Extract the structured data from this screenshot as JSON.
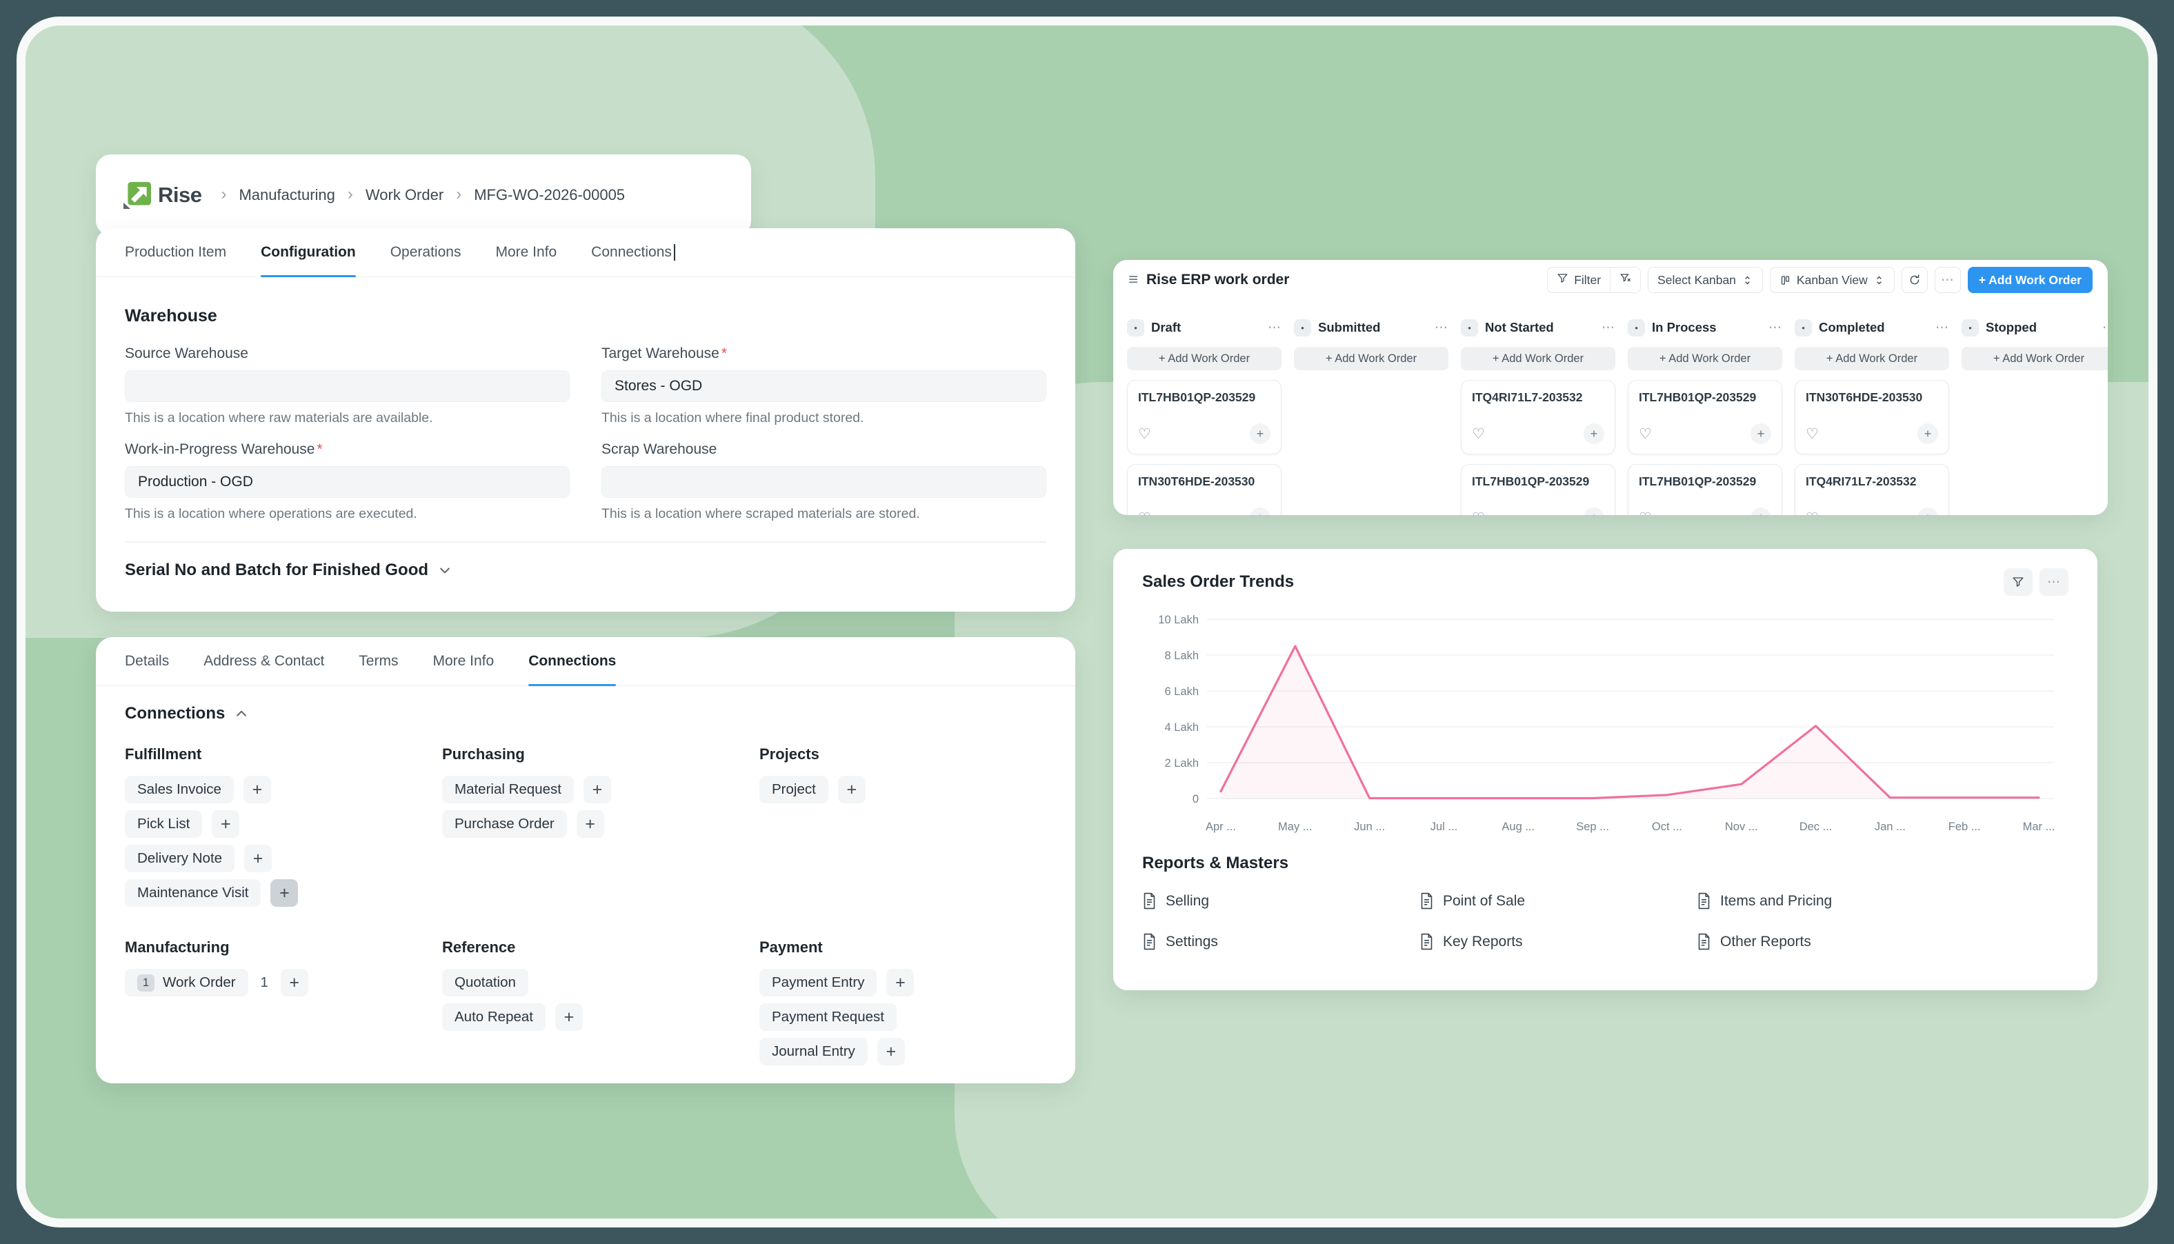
{
  "colors": {
    "accent_blue": "#2d95f0",
    "chart_pink": "#f0709d",
    "logo_green": "#6fb14b",
    "bg_green_main": "#a8cfae",
    "bg_green_light": "#c7dfca",
    "frame_dark": "#3d565e"
  },
  "breadcrumb": {
    "logo_text": "Rise",
    "items": [
      "Manufacturing",
      "Work Order",
      "MFG-WO-2026-00005"
    ]
  },
  "work_order_panel": {
    "tabs": [
      "Production Item",
      "Configuration",
      "Operations",
      "More Info",
      "Connections"
    ],
    "active_tab": "Configuration",
    "section_title": "Warehouse",
    "fields": [
      {
        "label": "Source Warehouse",
        "required": false,
        "value": "",
        "help": "This is a location where raw materials are available."
      },
      {
        "label": "Target Warehouse",
        "required": true,
        "value": "Stores - OGD",
        "help": "This is a location where final product stored."
      },
      {
        "label": "Work-in-Progress Warehouse",
        "required": true,
        "value": "Production - OGD",
        "help": "This is a location where operations are executed."
      },
      {
        "label": "Scrap Warehouse",
        "required": false,
        "value": "",
        "help": "This is a location where scraped materials are stored."
      }
    ],
    "collapsed_section": "Serial No and Batch for Finished Good"
  },
  "connections_panel": {
    "tabs": [
      "Details",
      "Address & Contact",
      "Terms",
      "More Info",
      "Connections"
    ],
    "active_tab": "Connections",
    "section_title": "Connections",
    "groups": [
      {
        "title": "Fulfillment",
        "items": [
          {
            "label": "Sales Invoice",
            "add": true
          },
          {
            "label": "Pick List",
            "add": true
          },
          {
            "label": "Delivery Note",
            "add": true
          },
          {
            "label": "Maintenance Visit",
            "add": true,
            "add_highlighted": true
          }
        ]
      },
      {
        "title": "Purchasing",
        "items": [
          {
            "label": "Material Request",
            "add": true
          },
          {
            "label": "Purchase Order",
            "add": true
          }
        ]
      },
      {
        "title": "Projects",
        "items": [
          {
            "label": "Project",
            "add": true
          }
        ]
      },
      {
        "title": "Manufacturing",
        "items": [
          {
            "label": "Work Order",
            "badge": "1",
            "count": "1",
            "add": true
          }
        ]
      },
      {
        "title": "Reference",
        "items": [
          {
            "label": "Quotation",
            "add": false
          },
          {
            "label": "Auto Repeat",
            "add": true
          }
        ]
      },
      {
        "title": "Payment",
        "items": [
          {
            "label": "Payment Entry",
            "add": true
          },
          {
            "label": "Payment Request",
            "add": false
          },
          {
            "label": "Journal Entry",
            "add": true
          }
        ]
      }
    ]
  },
  "kanban": {
    "title": "Rise ERP work order",
    "toolbar": {
      "filter_label": "Filter",
      "select_kanban_label": "Select Kanban",
      "view_label": "Kanban View",
      "add_button_label": "+ Add Work Order"
    },
    "add_card_label": "+ Add Work Order",
    "columns": [
      {
        "name": "Draft",
        "cards": [
          "ITL7HB01QP-203529",
          "ITN30T6HDE-203530"
        ]
      },
      {
        "name": "Submitted",
        "cards": []
      },
      {
        "name": "Not Started",
        "cards": [
          "ITQ4RI71L7-203532",
          "ITL7HB01QP-203529"
        ]
      },
      {
        "name": "In Process",
        "cards": [
          "ITL7HB01QP-203529",
          "ITL7HB01QP-203529"
        ]
      },
      {
        "name": "Completed",
        "cards": [
          "ITN30T6HDE-203530",
          "ITQ4RI71L7-203532"
        ]
      },
      {
        "name": "Stopped",
        "cards": []
      }
    ]
  },
  "sales_panel": {
    "title": "Sales Order Trends",
    "chart_data": {
      "type": "line",
      "title": "Sales Order Trends",
      "x": [
        "Apr ...",
        "May ...",
        "Jun ...",
        "Jul ...",
        "Aug ...",
        "Sep ...",
        "Oct ...",
        "Nov ...",
        "Dec ...",
        "Jan ...",
        "Feb ...",
        "Mar ..."
      ],
      "series": [
        {
          "name": "Sales Order Trends",
          "values": [
            0.4,
            8.5,
            0.02,
            0.02,
            0.02,
            0.02,
            0.2,
            0.8,
            4.05,
            0.05,
            0.05,
            0.05
          ]
        }
      ],
      "unit": "Lakh",
      "ylim": [
        0,
        10
      ],
      "yticks": [
        "0",
        "2 Lakh",
        "4 Lakh",
        "6 Lakh",
        "8 Lakh",
        "10 Lakh"
      ],
      "line_color": "#f0709d",
      "grid": true,
      "legend": "none"
    },
    "reports_masters": {
      "title": "Reports & Masters",
      "items": [
        "Selling",
        "Point of Sale",
        "Items and Pricing",
        "Settings",
        "Key Reports",
        "Other Reports"
      ]
    }
  }
}
